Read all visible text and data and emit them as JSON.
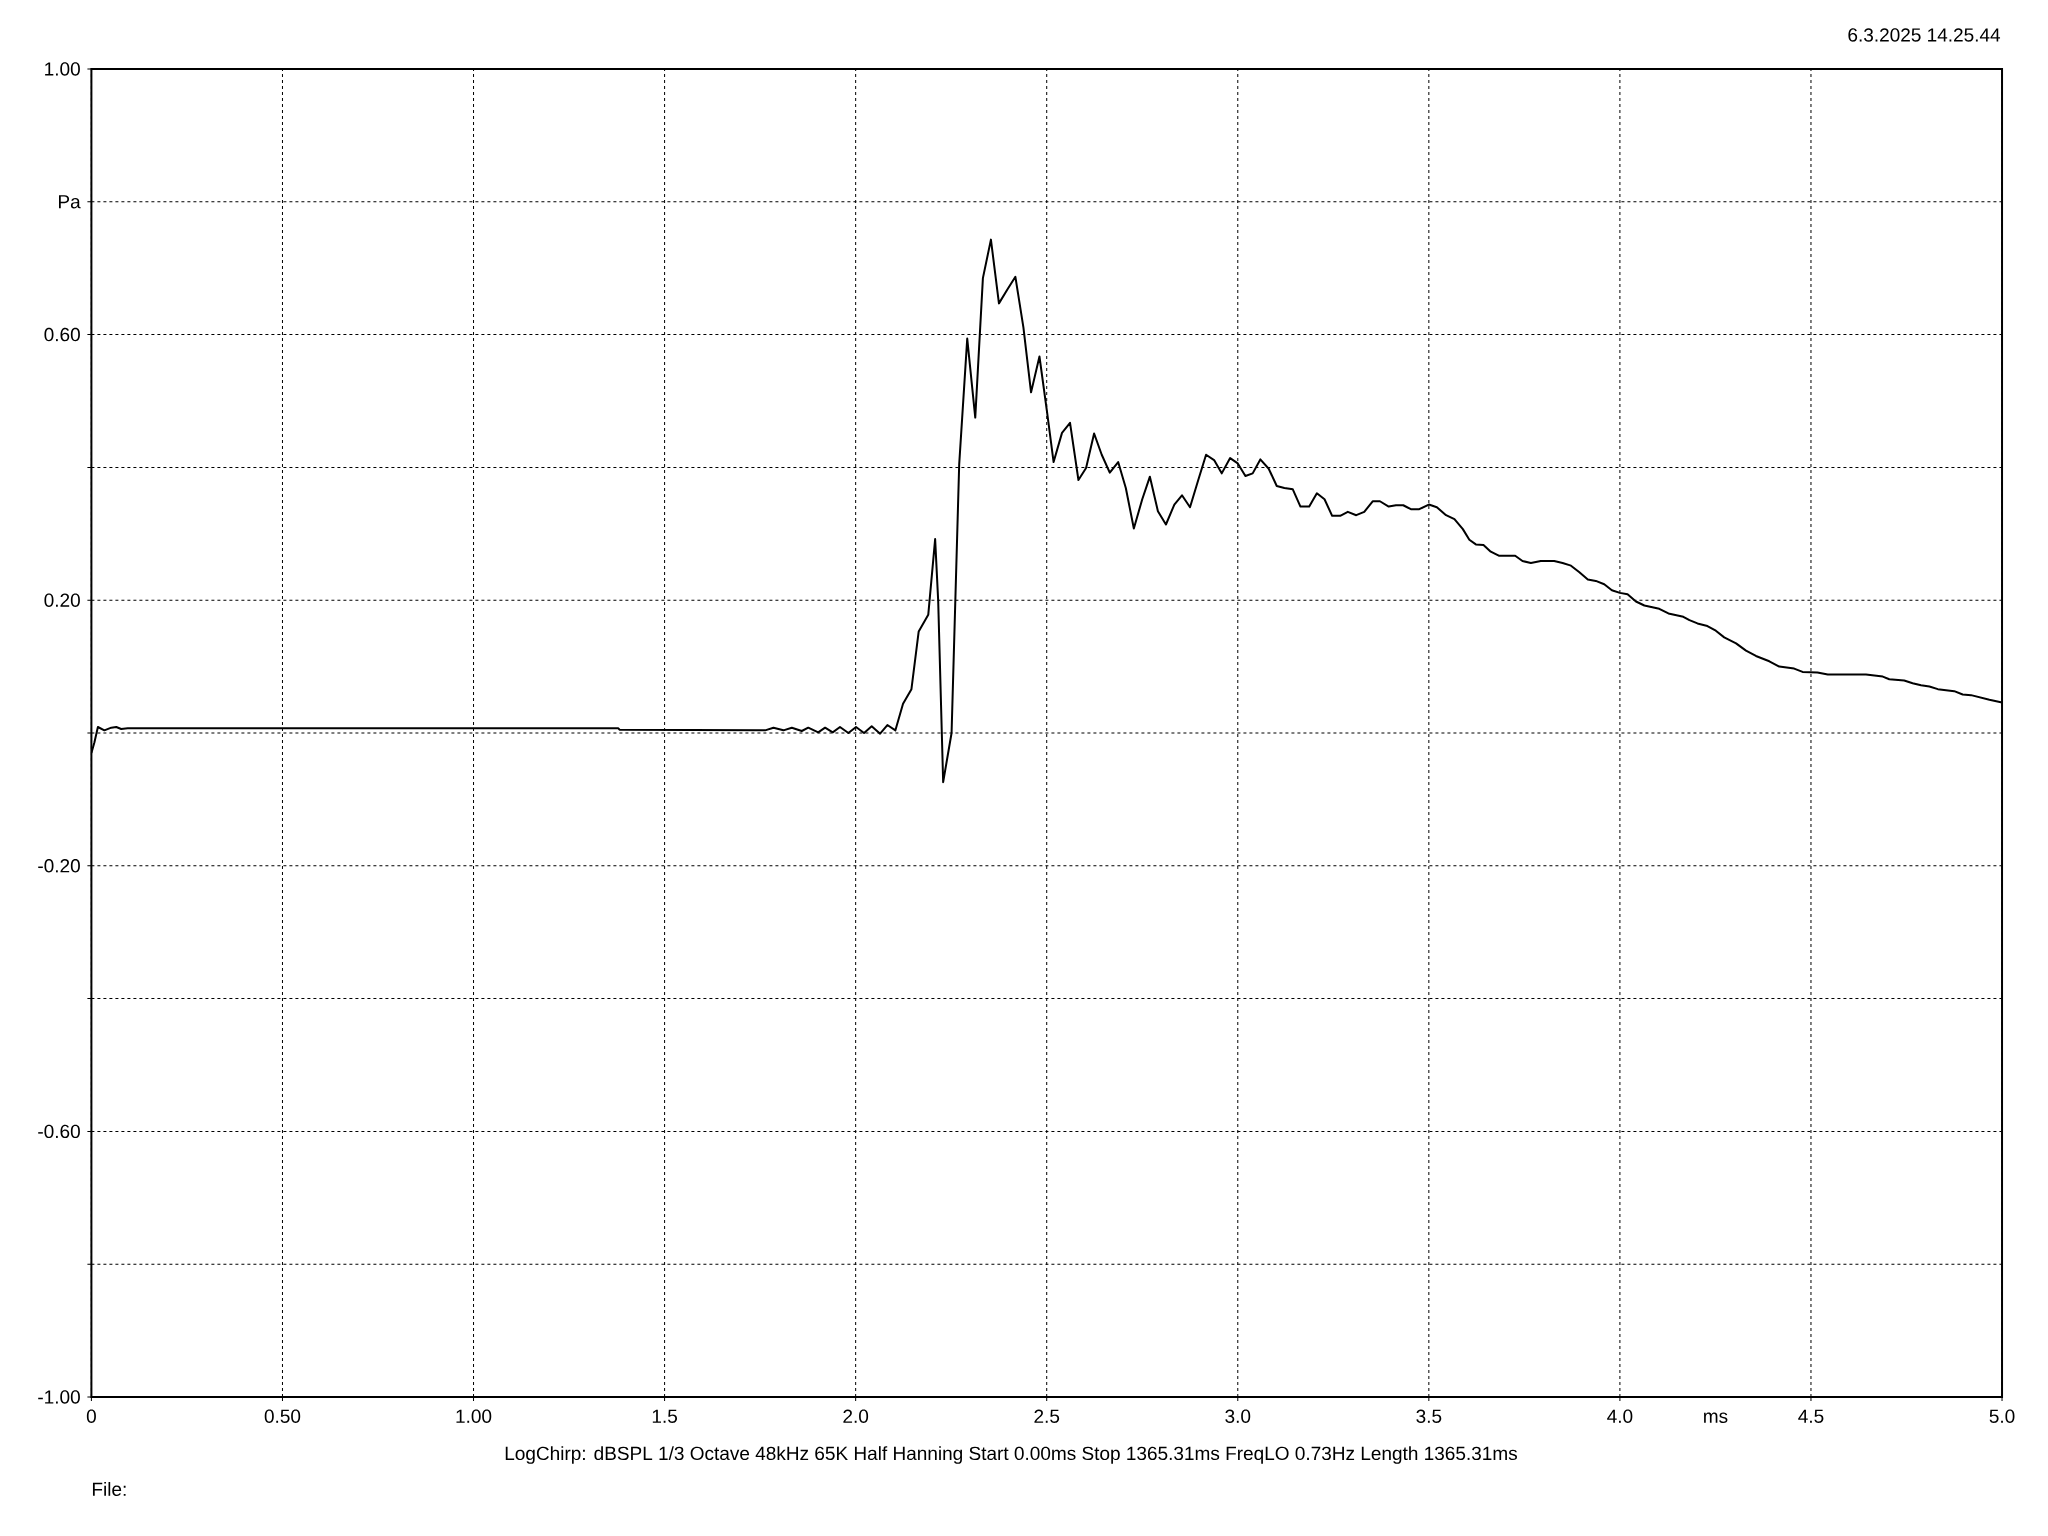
{
  "chart_data": {
    "type": "line",
    "xlabel": "ms",
    "ylabel": "Pa",
    "annotations": [
      "6.3.2025 14.25.44",
      "LogChirp:  dBSPL   1/3 Octave   48kHz   65K   Half Hanning   Start 0.00ms   Stop 1365.31ms   FreqLO 0.73Hz   Length 1365.31ms",
      "File:"
    ],
    "xlim": [
      0,
      5
    ],
    "ylim": [
      -1,
      1
    ],
    "xticks": [
      {
        "value": 0,
        "label": "0"
      },
      {
        "value": 0.5,
        "label": "0.50"
      },
      {
        "value": 1,
        "label": "1.00"
      },
      {
        "value": 1.5,
        "label": "1.5"
      },
      {
        "value": 2,
        "label": "2.0"
      },
      {
        "value": 2.5,
        "label": "2.5"
      },
      {
        "value": 3,
        "label": "3.0"
      },
      {
        "value": 3.5,
        "label": "3.5"
      },
      {
        "value": 4,
        "label": "4.0"
      },
      {
        "value": 4.5,
        "label": "4.5"
      },
      {
        "value": 5,
        "label": "5.0"
      }
    ],
    "yticks": [
      {
        "value": -1,
        "label": "-1.00"
      },
      {
        "value": -0.8,
        "label": null
      },
      {
        "value": -0.6,
        "label": "-0.60"
      },
      {
        "value": -0.4,
        "label": null
      },
      {
        "value": -0.2,
        "label": "-0.20"
      },
      {
        "value": 0,
        "label": null
      },
      {
        "value": 0.2,
        "label": "0.20"
      },
      {
        "value": 0.4,
        "label": null
      },
      {
        "value": 0.6,
        "label": "0.60"
      },
      {
        "value": 0.8,
        "label": null
      },
      {
        "value": 1,
        "label": "1.00"
      }
    ],
    "grid": true,
    "color": "#000000",
    "x": [
      0,
      0.008,
      0.017,
      0.034,
      0.052,
      0.065,
      0.078,
      0.095,
      1.379,
      1.382,
      1.763,
      1.785,
      1.811,
      1.833,
      1.859,
      1.876,
      1.902,
      1.92,
      1.94,
      1.959,
      1.981,
      2.001,
      2.022,
      2.042,
      2.064,
      2.083,
      2.104,
      2.124,
      2.146,
      2.165,
      2.19,
      2.208,
      2.216,
      2.229,
      2.251,
      2.271,
      2.292,
      2.313,
      2.333,
      2.354,
      2.375,
      2.397,
      2.418,
      2.439,
      2.459,
      2.481,
      2.501,
      2.518,
      2.54,
      2.561,
      2.583,
      2.603,
      2.624,
      2.644,
      2.665,
      2.687,
      2.707,
      2.728,
      2.75,
      2.77,
      2.791,
      2.812,
      2.834,
      2.854,
      2.875,
      2.896,
      2.917,
      2.938,
      2.958,
      2.98,
      3.0,
      3.02,
      3.039,
      3.059,
      3.081,
      3.102,
      3.122,
      3.144,
      3.164,
      3.187,
      3.207,
      3.227,
      3.247,
      3.268,
      3.288,
      3.31,
      3.331,
      3.353,
      3.372,
      3.395,
      3.414,
      3.433,
      3.453,
      3.475,
      3.5,
      3.521,
      3.545,
      3.567,
      3.589,
      3.606,
      3.623,
      3.643,
      3.662,
      3.683,
      3.726,
      3.745,
      3.767,
      3.793,
      3.828,
      3.85,
      3.872,
      3.894,
      3.916,
      3.937,
      3.959,
      3.979,
      4.0,
      4.02,
      4.042,
      4.064,
      4.103,
      4.127,
      4.166,
      4.182,
      4.203,
      4.229,
      4.251,
      4.273,
      4.304,
      4.33,
      4.356,
      4.391,
      4.417,
      4.456,
      4.478,
      4.517,
      4.544,
      4.644,
      4.688,
      4.705,
      4.744,
      4.766,
      4.788,
      4.81,
      4.832,
      4.875,
      4.897,
      4.919,
      4.967,
      5.0
    ],
    "values": [
      -0.03,
      -0.014,
      0.009,
      0.004,
      0.008,
      0.009,
      0.006,
      0.007,
      0.007,
      0.005,
      0.004,
      0.008,
      0.004,
      0.008,
      0.003,
      0.008,
      0.001,
      0.008,
      0.001,
      0.009,
      0,
      0.009,
      0,
      0.01,
      -0.001,
      0.012,
      0.004,
      0.044,
      0.066,
      0.153,
      0.178,
      0.292,
      0.199,
      -0.074,
      0,
      0.405,
      0.594,
      0.475,
      0.685,
      0.743,
      0.647,
      0.668,
      0.687,
      0.611,
      0.513,
      0.567,
      0.483,
      0.408,
      0.452,
      0.467,
      0.381,
      0.399,
      0.451,
      0.419,
      0.392,
      0.408,
      0.369,
      0.308,
      0.352,
      0.386,
      0.334,
      0.314,
      0.344,
      0.358,
      0.34,
      0.38,
      0.419,
      0.411,
      0.391,
      0.414,
      0.406,
      0.387,
      0.391,
      0.412,
      0.398,
      0.372,
      0.369,
      0.367,
      0.341,
      0.341,
      0.361,
      0.352,
      0.327,
      0.327,
      0.333,
      0.328,
      0.333,
      0.349,
      0.349,
      0.341,
      0.343,
      0.343,
      0.337,
      0.337,
      0.344,
      0.34,
      0.328,
      0.322,
      0.307,
      0.291,
      0.284,
      0.283,
      0.273,
      0.267,
      0.267,
      0.259,
      0.256,
      0.259,
      0.259,
      0.256,
      0.252,
      0.242,
      0.231,
      0.229,
      0.224,
      0.215,
      0.211,
      0.209,
      0.198,
      0.192,
      0.187,
      0.18,
      0.175,
      0.17,
      0.165,
      0.161,
      0.154,
      0.144,
      0.135,
      0.124,
      0.116,
      0.108,
      0.1,
      0.097,
      0.092,
      0.091,
      0.088,
      0.088,
      0.085,
      0.081,
      0.079,
      0.075,
      0.072,
      0.07,
      0.066,
      0.063,
      0.058,
      0.057,
      0.05,
      0.046
    ]
  }
}
